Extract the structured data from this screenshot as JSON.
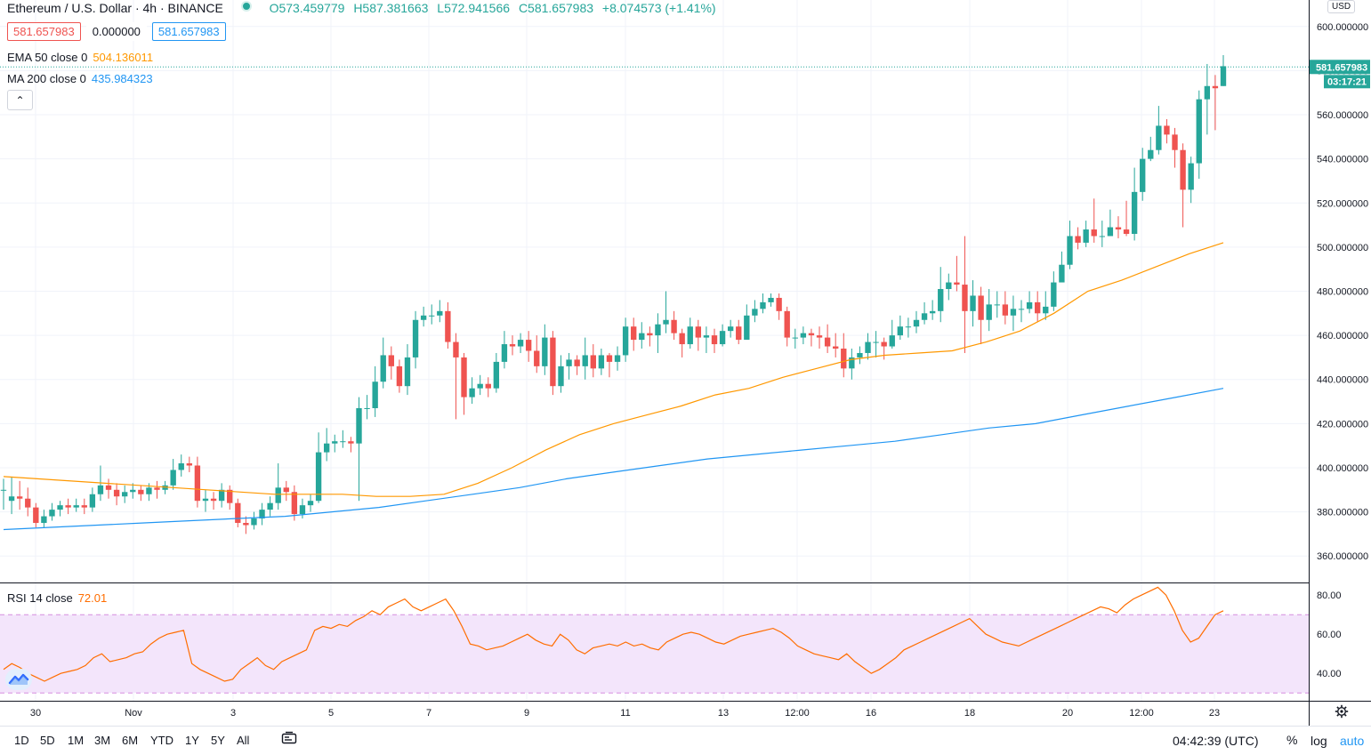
{
  "header": {
    "symbol": "Ethereum / U.S. Dollar",
    "interval": "4h",
    "exchange": "BINANCE",
    "open": "O573.459779",
    "high": "H587.381663",
    "low": "L572.941566",
    "close": "C581.657983",
    "change": "+8.074573 (+1.41%)",
    "bid": "581.657983",
    "spread": "0.000000",
    "ask": "581.657983"
  },
  "indicators": {
    "ema": {
      "label": "EMA 50 close 0",
      "value": "504.136011",
      "color": "#ff9800"
    },
    "ma": {
      "label": "MA 200 close 0",
      "value": "435.984323",
      "color": "#2196f3"
    },
    "rsi": {
      "label": "RSI 14 close",
      "value": "72.01",
      "color": "#ff6d00"
    }
  },
  "price_axis": {
    "currency": "USD",
    "last_price": "581.657983",
    "countdown": "03:17:21"
  },
  "bottom_bar": {
    "ranges": [
      "1D",
      "5D",
      "1M",
      "3M",
      "6M",
      "YTD",
      "1Y",
      "5Y",
      "All"
    ],
    "clock": "04:42:39 (UTC)",
    "percent": "%",
    "log": "log",
    "auto": "auto"
  },
  "colors": {
    "up": "#26a69a",
    "down": "#ef5350",
    "ema": "#ff9800",
    "ma": "#2196f3",
    "rsi": "#ff6d00",
    "rsi_band": "#f3e5fb"
  },
  "icons": [
    "collapse-chevron-icon",
    "tradingview-logo-icon",
    "settings-gear-icon",
    "snapshot-icon"
  ],
  "chart_data": {
    "type": "candlestick",
    "title": "Ethereum / U.S. Dollar · 4h · BINANCE",
    "x_ticks": [
      "30",
      "Nov",
      "3",
      "5",
      "7",
      "9",
      "11",
      "13",
      "12:00",
      "16",
      "18",
      "20",
      "12:00",
      "23"
    ],
    "y_ticks": [
      "360.000000",
      "380.000000",
      "400.000000",
      "420.000000",
      "440.000000",
      "460.000000",
      "480.000000",
      "500.000000",
      "520.000000",
      "540.000000",
      "560.000000",
      "580.000000",
      "600.000000"
    ],
    "ylim": [
      348,
      612
    ],
    "rsi_ticks": [
      "40.00",
      "60.00",
      "80.00"
    ],
    "rsi_ylim": [
      26,
      86
    ],
    "rsi_band": [
      30,
      70
    ],
    "ohlc": [
      [
        390,
        390,
        395,
        381
      ],
      [
        385,
        387,
        396,
        379
      ],
      [
        387,
        386,
        394,
        381
      ],
      [
        386,
        382,
        391,
        378
      ],
      [
        382,
        375,
        384,
        373
      ],
      [
        375,
        378,
        381,
        373
      ],
      [
        378,
        381,
        384,
        376
      ],
      [
        381,
        383,
        385,
        378
      ],
      [
        383,
        382,
        386,
        379
      ],
      [
        382,
        383,
        386,
        380
      ],
      [
        383,
        382,
        386,
        379
      ],
      [
        382,
        388,
        391,
        380
      ],
      [
        388,
        392,
        401,
        385
      ],
      [
        392,
        390,
        395,
        386
      ],
      [
        390,
        387,
        393,
        383
      ],
      [
        387,
        389,
        392,
        384
      ],
      [
        389,
        390,
        393,
        386
      ],
      [
        390,
        388,
        392,
        385
      ],
      [
        388,
        391,
        393,
        385
      ],
      [
        391,
        390,
        394,
        386
      ],
      [
        390,
        392,
        394,
        388
      ],
      [
        392,
        399,
        404,
        390
      ],
      [
        399,
        402,
        406,
        396
      ],
      [
        402,
        401,
        405,
        398
      ],
      [
        401,
        385,
        405,
        382
      ],
      [
        385,
        386,
        390,
        380
      ],
      [
        386,
        385,
        389,
        381
      ],
      [
        385,
        390,
        393,
        382
      ],
      [
        390,
        384,
        392,
        381
      ],
      [
        384,
        375,
        386,
        373
      ],
      [
        375,
        374,
        378,
        370
      ],
      [
        374,
        377,
        380,
        372
      ],
      [
        377,
        381,
        384,
        374
      ],
      [
        381,
        384,
        387,
        378
      ],
      [
        384,
        391,
        402,
        381
      ],
      [
        391,
        389,
        394,
        385
      ],
      [
        389,
        379,
        392,
        376
      ],
      [
        379,
        383,
        386,
        377
      ],
      [
        383,
        385,
        388,
        380
      ],
      [
        385,
        407,
        416,
        384
      ],
      [
        407,
        411,
        418,
        403
      ],
      [
        411,
        412,
        415,
        407
      ],
      [
        412,
        412,
        417,
        409
      ],
      [
        412,
        411,
        414,
        407
      ],
      [
        411,
        427,
        432,
        385
      ],
      [
        427,
        427,
        433,
        422
      ],
      [
        427,
        439,
        446,
        423
      ],
      [
        439,
        451,
        459,
        436
      ],
      [
        451,
        446,
        455,
        440
      ],
      [
        446,
        437,
        449,
        434
      ],
      [
        437,
        450,
        456,
        433
      ],
      [
        450,
        467,
        471,
        445
      ],
      [
        467,
        469,
        473,
        464
      ],
      [
        469,
        469,
        474,
        465
      ],
      [
        469,
        471,
        476,
        466
      ],
      [
        471,
        457,
        475,
        454
      ],
      [
        457,
        450,
        461,
        422
      ],
      [
        450,
        432,
        452,
        424
      ],
      [
        432,
        436,
        441,
        429
      ],
      [
        436,
        438,
        442,
        433
      ],
      [
        438,
        436,
        441,
        432
      ],
      [
        436,
        448,
        452,
        434
      ],
      [
        448,
        456,
        462,
        445
      ],
      [
        456,
        455,
        460,
        451
      ],
      [
        455,
        458,
        461,
        452
      ],
      [
        458,
        453,
        462,
        448
      ],
      [
        453,
        446,
        460,
        443
      ],
      [
        446,
        459,
        465,
        442
      ],
      [
        459,
        437,
        462,
        433
      ],
      [
        437,
        446,
        451,
        434
      ],
      [
        446,
        449,
        452,
        440
      ],
      [
        449,
        446,
        451,
        442
      ],
      [
        446,
        451,
        459,
        440
      ],
      [
        451,
        445,
        456,
        441
      ],
      [
        445,
        451,
        454,
        442
      ],
      [
        451,
        448,
        452,
        441
      ],
      [
        448,
        451,
        455,
        444
      ],
      [
        451,
        464,
        468,
        448
      ],
      [
        464,
        458,
        468,
        453
      ],
      [
        458,
        461,
        466,
        454
      ],
      [
        461,
        460,
        464,
        455
      ],
      [
        460,
        465,
        470,
        452
      ],
      [
        465,
        467,
        480,
        461
      ],
      [
        467,
        461,
        471,
        458
      ],
      [
        461,
        456,
        463,
        450
      ],
      [
        456,
        464,
        468,
        454
      ],
      [
        464,
        459,
        467,
        453
      ],
      [
        459,
        460,
        464,
        452
      ],
      [
        460,
        456,
        463,
        452
      ],
      [
        456,
        462,
        465,
        455
      ],
      [
        462,
        464,
        467,
        459
      ],
      [
        464,
        458,
        467,
        456
      ],
      [
        458,
        469,
        474,
        459
      ],
      [
        469,
        472,
        476,
        466
      ],
      [
        472,
        475,
        479,
        470
      ],
      [
        475,
        477,
        479,
        473
      ],
      [
        477,
        471,
        479,
        467
      ],
      [
        471,
        459,
        473,
        455
      ],
      [
        459,
        459,
        463,
        454
      ],
      [
        459,
        461,
        464,
        456
      ],
      [
        461,
        460,
        463,
        455
      ],
      [
        460,
        459,
        464,
        454
      ],
      [
        459,
        455,
        465,
        452
      ],
      [
        455,
        454,
        461,
        450
      ],
      [
        454,
        445,
        461,
        441
      ],
      [
        445,
        450,
        454,
        440
      ],
      [
        450,
        452,
        455,
        447
      ],
      [
        452,
        457,
        461,
        449
      ],
      [
        457,
        457,
        462,
        450
      ],
      [
        457,
        455,
        459,
        449
      ],
      [
        455,
        460,
        467,
        454
      ],
      [
        460,
        464,
        469,
        458
      ],
      [
        464,
        464,
        468,
        459
      ],
      [
        464,
        467,
        471,
        461
      ],
      [
        467,
        470,
        475,
        465
      ],
      [
        470,
        471,
        476,
        467
      ],
      [
        471,
        481,
        491,
        466
      ],
      [
        481,
        484,
        488,
        476
      ],
      [
        484,
        483,
        496,
        480
      ],
      [
        483,
        471,
        505,
        452
      ],
      [
        471,
        478,
        485,
        464
      ],
      [
        478,
        467,
        482,
        456
      ],
      [
        467,
        474,
        481,
        462
      ],
      [
        474,
        474,
        480,
        468
      ],
      [
        474,
        469,
        480,
        465
      ],
      [
        469,
        472,
        478,
        462
      ],
      [
        472,
        472,
        476,
        466
      ],
      [
        472,
        475,
        480,
        470
      ],
      [
        475,
        470,
        480,
        466
      ],
      [
        470,
        473,
        480,
        467
      ],
      [
        473,
        484,
        489,
        471
      ],
      [
        484,
        492,
        498,
        485
      ],
      [
        492,
        505,
        512,
        490
      ],
      [
        505,
        502,
        509,
        499
      ],
      [
        502,
        508,
        512,
        500
      ],
      [
        508,
        505,
        522,
        502
      ],
      [
        505,
        505,
        512,
        500
      ],
      [
        505,
        509,
        517,
        505
      ],
      [
        509,
        508,
        514,
        504
      ],
      [
        508,
        506,
        521,
        505
      ],
      [
        506,
        525,
        536,
        503
      ],
      [
        525,
        540,
        545,
        521
      ],
      [
        540,
        544,
        550,
        539
      ],
      [
        544,
        555,
        564,
        542
      ],
      [
        555,
        551,
        558,
        547
      ],
      [
        551,
        544,
        554,
        536
      ],
      [
        544,
        526,
        547,
        509
      ],
      [
        526,
        538,
        541,
        520
      ],
      [
        538,
        567,
        571,
        531
      ],
      [
        567,
        573,
        583,
        551
      ],
      [
        573,
        572,
        578,
        553
      ],
      [
        573,
        582,
        587,
        573
      ]
    ],
    "ema50": [
      396,
      395,
      394,
      393,
      392,
      391,
      390,
      389,
      388,
      388,
      388,
      387,
      387,
      388,
      393,
      400,
      408,
      415,
      420,
      424,
      428,
      433,
      436,
      441,
      445,
      449,
      451,
      452,
      453,
      457,
      462,
      470,
      480,
      485,
      491,
      497,
      502
    ],
    "ma200": [
      372,
      373,
      374,
      375,
      376,
      377,
      378,
      380,
      382,
      385,
      388,
      391,
      395,
      398,
      401,
      404,
      406,
      408,
      410,
      412,
      415,
      418,
      420,
      424,
      428,
      432,
      436
    ],
    "rsi": [
      42,
      45,
      43,
      40,
      38,
      36,
      38,
      40,
      41,
      42,
      44,
      48,
      50,
      46,
      47,
      48,
      50,
      51,
      55,
      58,
      60,
      61,
      62,
      45,
      42,
      40,
      38,
      36,
      37,
      42,
      45,
      48,
      44,
      42,
      46,
      48,
      50,
      52,
      62,
      64,
      63,
      65,
      64,
      67,
      69,
      72,
      70,
      74,
      76,
      78,
      74,
      72,
      74,
      76,
      78,
      72,
      64,
      55,
      54,
      52,
      53,
      54,
      56,
      58,
      60,
      57,
      55,
      54,
      60,
      57,
      52,
      50,
      53,
      54,
      55,
      54,
      56,
      54,
      55,
      53,
      52,
      56,
      58,
      60,
      61,
      60,
      58,
      56,
      55,
      57,
      59,
      60,
      61,
      62,
      63,
      61,
      58,
      54,
      52,
      50,
      49,
      48,
      47,
      50,
      46,
      43,
      40,
      42,
      45,
      48,
      52,
      54,
      56,
      58,
      60,
      62,
      64,
      66,
      68,
      64,
      60,
      58,
      56,
      55,
      54,
      56,
      58,
      60,
      62,
      64,
      66,
      68,
      70,
      72,
      74,
      73,
      71,
      75,
      78,
      80,
      82,
      84,
      80,
      72,
      62,
      56,
      58,
      64,
      70,
      72
    ],
    "last": 581.657983
  }
}
